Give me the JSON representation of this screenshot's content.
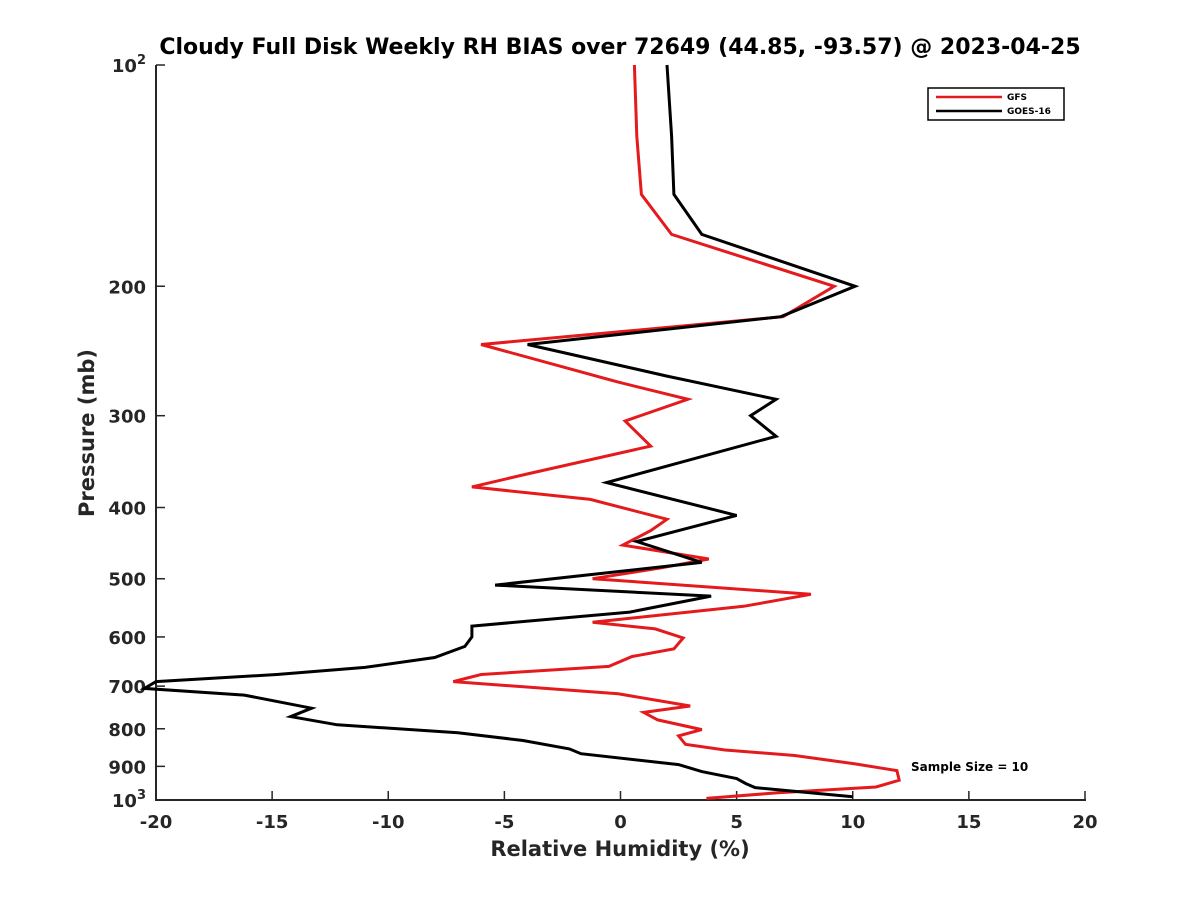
{
  "chart_data": {
    "type": "line",
    "title": "Cloudy Full Disk Weekly RH BIAS over 72649 (44.85, -93.57) @ 2023-04-25",
    "xlabel": "Relative Humidity (%)",
    "ylabel": "Pressure (mb)",
    "xlim": [
      -20,
      20
    ],
    "ylim": [
      100,
      1000
    ],
    "yscale": "log",
    "y_reversed": true,
    "grid": false,
    "legend_position": "top-right",
    "x_ticks": [
      "-20",
      "-15",
      "-10",
      "-5",
      "0",
      "5",
      "10",
      "15",
      "20"
    ],
    "y_ticks": [
      {
        "value": 100,
        "base": "10",
        "exp": "2"
      },
      {
        "value": 200,
        "label": "200"
      },
      {
        "value": 300,
        "label": "300"
      },
      {
        "value": 400,
        "label": "400"
      },
      {
        "value": 500,
        "label": "500"
      },
      {
        "value": 600,
        "label": "600"
      },
      {
        "value": 700,
        "label": "700"
      },
      {
        "value": 800,
        "label": "800"
      },
      {
        "value": 900,
        "label": "900"
      },
      {
        "value": 1000,
        "base": "10",
        "exp": "3"
      }
    ],
    "series": [
      {
        "name": "GFS",
        "color": "#e41a1c",
        "points": [
          [
            0.6,
            100
          ],
          [
            0.7,
            125
          ],
          [
            0.9,
            150
          ],
          [
            2.2,
            170
          ],
          [
            9.2,
            200
          ],
          [
            7.0,
            220
          ],
          [
            -6.0,
            240
          ],
          [
            -0.1,
            270
          ],
          [
            2.9,
            285
          ],
          [
            0.2,
            305
          ],
          [
            1.3,
            330
          ],
          [
            -4.0,
            360
          ],
          [
            -6.4,
            375
          ],
          [
            -1.3,
            390
          ],
          [
            2.0,
            415
          ],
          [
            1.3,
            430
          ],
          [
            0.1,
            450
          ],
          [
            3.8,
            470
          ],
          [
            1.8,
            483
          ],
          [
            -1.2,
            500
          ],
          [
            8.2,
            525
          ],
          [
            5.3,
            545
          ],
          [
            -1.2,
            573
          ],
          [
            1.5,
            585
          ],
          [
            2.7,
            602
          ],
          [
            2.3,
            623
          ],
          [
            0.5,
            638
          ],
          [
            -0.5,
            658
          ],
          [
            -6.0,
            675
          ],
          [
            -7.2,
            690
          ],
          [
            -0.1,
            717
          ],
          [
            3.0,
            745
          ],
          [
            1.0,
            760
          ],
          [
            1.6,
            778
          ],
          [
            3.5,
            802
          ],
          [
            2.5,
            818
          ],
          [
            2.8,
            840
          ],
          [
            4.5,
            855
          ],
          [
            7.5,
            870
          ],
          [
            10.1,
            893
          ],
          [
            11.9,
            912
          ],
          [
            12.0,
            940
          ],
          [
            11.0,
            960
          ],
          [
            6.7,
            978
          ],
          [
            3.7,
            995
          ]
        ]
      },
      {
        "name": "GOES-16",
        "color": "#000000",
        "points": [
          [
            2.0,
            100
          ],
          [
            2.2,
            125
          ],
          [
            2.3,
            150
          ],
          [
            3.5,
            170
          ],
          [
            10.1,
            200
          ],
          [
            6.9,
            220
          ],
          [
            -4.0,
            240
          ],
          [
            2.0,
            265
          ],
          [
            6.7,
            285
          ],
          [
            5.6,
            300
          ],
          [
            6.7,
            320
          ],
          [
            -0.6,
            370
          ],
          [
            5.0,
            410
          ],
          [
            2.5,
            430
          ],
          [
            0.7,
            445
          ],
          [
            3.5,
            475
          ],
          [
            -5.4,
            510
          ],
          [
            3.9,
            528
          ],
          [
            0.4,
            555
          ],
          [
            -6.4,
            580
          ],
          [
            -6.4,
            600
          ],
          [
            -6.7,
            618
          ],
          [
            -8.0,
            640
          ],
          [
            -11.0,
            660
          ],
          [
            -14.8,
            675
          ],
          [
            -20.0,
            690
          ],
          [
            -20.5,
            705
          ],
          [
            -16.2,
            720
          ],
          [
            -13.3,
            750
          ],
          [
            -14.2,
            770
          ],
          [
            -12.2,
            790
          ],
          [
            -7.0,
            810
          ],
          [
            -4.2,
            830
          ],
          [
            -2.2,
            852
          ],
          [
            -1.7,
            865
          ],
          [
            2.5,
            895
          ],
          [
            3.5,
            915
          ],
          [
            5.0,
            935
          ],
          [
            5.4,
            950
          ],
          [
            5.8,
            962
          ],
          [
            10.0,
            990
          ]
        ]
      }
    ],
    "annotation": "Sample Size = 10"
  }
}
